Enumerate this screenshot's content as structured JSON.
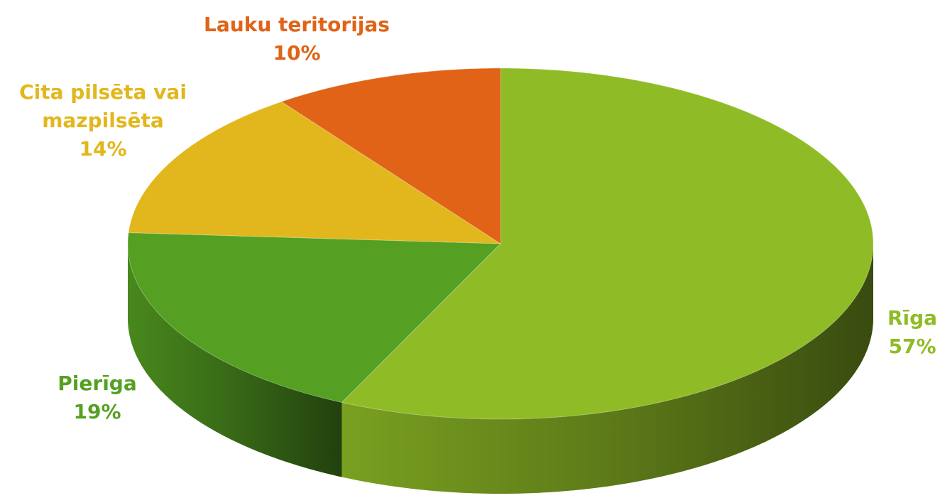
{
  "chart_data": {
    "type": "pie",
    "categories": [
      "Rīga",
      "Pierīga",
      "Cita pilsēta vai mazpilsēta",
      "Lauku teritorijas"
    ],
    "values": [
      57,
      19,
      14,
      10
    ],
    "value_labels": [
      "57%",
      "19%",
      "14%",
      "10%"
    ],
    "colors": [
      "#8fbc26",
      "#55a022",
      "#e2b71d",
      "#e06317"
    ]
  }
}
